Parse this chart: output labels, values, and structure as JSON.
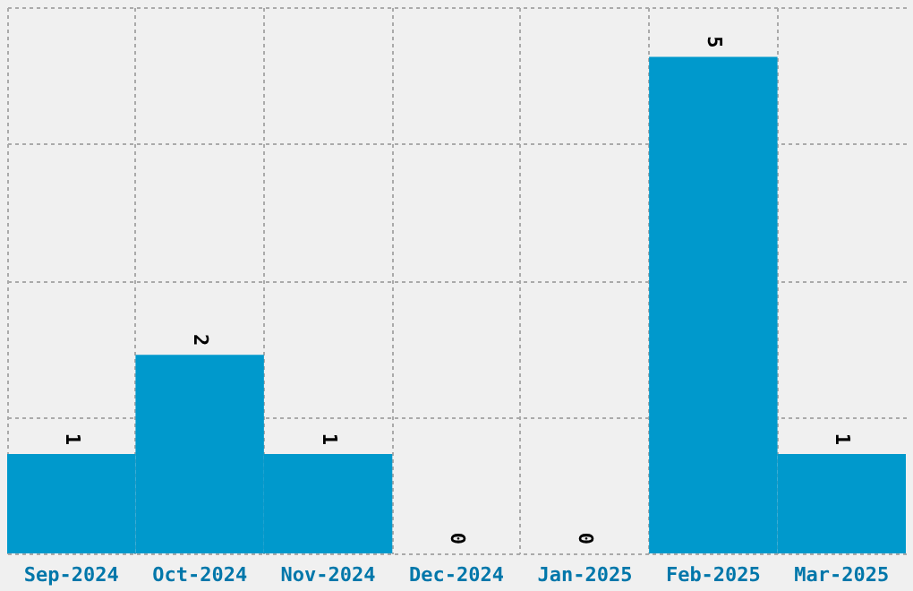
{
  "chart_data": {
    "type": "bar",
    "categories": [
      "Sep-2024",
      "Oct-2024",
      "Nov-2024",
      "Dec-2024",
      "Jan-2025",
      "Feb-2025",
      "Mar-2025"
    ],
    "values": [
      1,
      2,
      1,
      0,
      0,
      5,
      1
    ],
    "color": "#0099cc",
    "ylim": [
      0,
      5.5
    ],
    "yticks": [
      {
        "value": 0,
        "label": null
      },
      {
        "value": 1.375,
        "label": null
      },
      {
        "value": 2.75,
        "label": null
      },
      {
        "value": 4.125,
        "label": null
      },
      {
        "value": 5.5,
        "label": null
      }
    ],
    "grid": true,
    "tick_labels": "x",
    "data_labels": true
  }
}
